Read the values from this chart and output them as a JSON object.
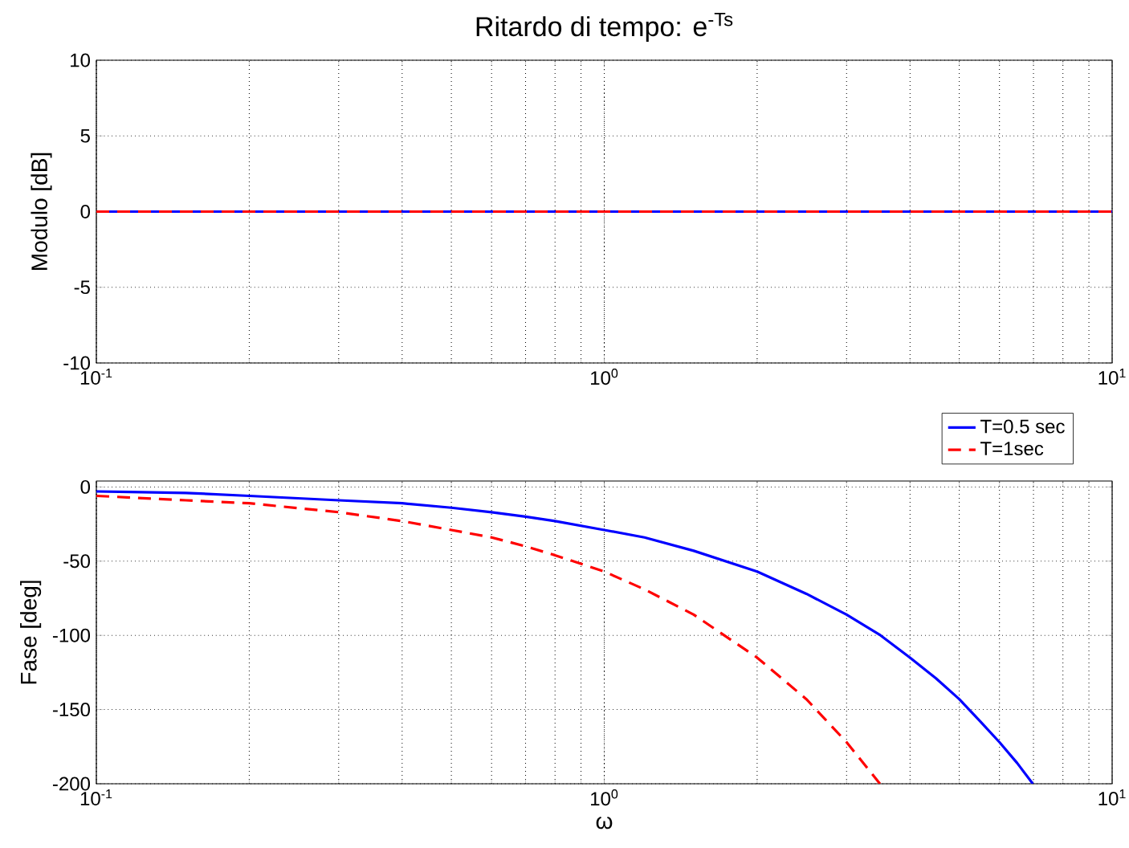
{
  "chart_data": [
    {
      "type": "line",
      "title": "Ritardo di tempo: e$^{-Ts}$",
      "ylabel": "Modulo [dB]",
      "log": "x",
      "grid": true,
      "xlim": [
        0.1,
        10
      ],
      "xticks": [
        {
          "value": 0.1,
          "label": "10$^{-1}$"
        },
        {
          "value": 1,
          "label": "10$^{0}$"
        },
        {
          "value": 10,
          "label": "10$^{1}$"
        }
      ],
      "ylim": [
        -10,
        10
      ],
      "yticks": [
        -10,
        -5,
        0,
        5,
        10
      ],
      "series": [
        {
          "color": "#0000ff",
          "line_style": "solid",
          "x": [
            0.1,
            1,
            10
          ],
          "values": [
            0,
            0,
            0
          ]
        },
        {
          "color": "#ff0000",
          "line_style": "dashed",
          "x": [
            0.1,
            1,
            10
          ],
          "values": [
            0,
            0,
            0
          ]
        }
      ]
    },
    {
      "type": "line",
      "xlabel": "ω",
      "ylabel": "Fase [deg]",
      "log": "x",
      "grid": true,
      "legend": "top right",
      "xlim": [
        0.1,
        10
      ],
      "xticks": [
        {
          "value": 0.1,
          "label": "10$^{-1}$"
        },
        {
          "value": 1,
          "label": "10$^{0}$"
        },
        {
          "value": 10,
          "label": "10$^{1}$"
        }
      ],
      "ylim": [
        -200,
        4
      ],
      "yticks": [
        -200,
        -150,
        -100,
        -50,
        0
      ],
      "series": [
        {
          "name": "T=0.5 sec",
          "color": "#0000ff",
          "line_style": "solid",
          "x": [
            0.1,
            0.15,
            0.2,
            0.3,
            0.4,
            0.5,
            0.6,
            0.7,
            0.8,
            1,
            1.2,
            1.5,
            2,
            2.5,
            3,
            3.5,
            4,
            4.5,
            5,
            5.5,
            6,
            6.5,
            6.98
          ],
          "values": [
            -3,
            -4,
            -6,
            -9,
            -11,
            -14,
            -17,
            -20,
            -23,
            -29,
            -34,
            -43,
            -57,
            -72,
            -86,
            -100,
            -115,
            -129,
            -143,
            -158,
            -172,
            -186,
            -200
          ]
        },
        {
          "name": "T=1sec",
          "color": "#ff0000",
          "line_style": "dashed",
          "x": [
            0.1,
            0.15,
            0.2,
            0.3,
            0.4,
            0.5,
            0.6,
            0.7,
            0.8,
            1,
            1.2,
            1.5,
            2,
            2.5,
            3,
            3.49
          ],
          "values": [
            -6,
            -9,
            -11,
            -17,
            -23,
            -29,
            -34,
            -40,
            -46,
            -57,
            -69,
            -86,
            -115,
            -143,
            -172,
            -200
          ]
        }
      ]
    }
  ]
}
